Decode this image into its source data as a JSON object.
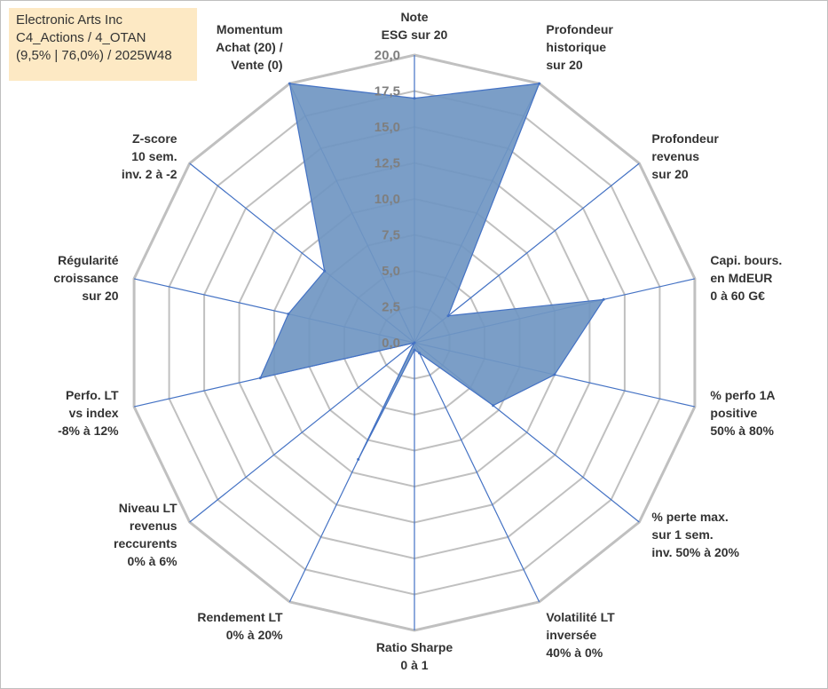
{
  "info": {
    "line1": "Electronic Arts Inc",
    "line2": "C4_Actions / 4_OTAN",
    "line3": "(9,5% | 76,0%) / 2025W48"
  },
  "chart_data": {
    "type": "radar",
    "rmin": 0,
    "rmax": 20,
    "ticks": [
      "0,0",
      "2,5",
      "5,0",
      "7,5",
      "10,0",
      "12,5",
      "15,0",
      "17,5",
      "20,0"
    ],
    "grid": true,
    "colors": {
      "fill": "#7096c2",
      "stroke": "#4472c4",
      "grid": "#c0c0c0"
    },
    "axes": [
      {
        "label": [
          "Note",
          "ESG sur 20"
        ],
        "value": 17
      },
      {
        "label": [
          "Profondeur",
          "historique",
          "sur 20"
        ],
        "value": 20
      },
      {
        "label": [
          "Profondeur",
          "revenus",
          "sur 20"
        ],
        "value": 3
      },
      {
        "label": [
          "Capi. bours.",
          "en MdEUR",
          "0 à 60 G€"
        ],
        "value": 13.5
      },
      {
        "label": [
          "% perfo 1A",
          "positive",
          "50% à 80%"
        ],
        "value": 10
      },
      {
        "label": [
          "% perte max.",
          "sur 1 sem.",
          "inv. 50% à 20%"
        ],
        "value": 7
      },
      {
        "label": [
          "Volatilité LT",
          "inversée",
          "40% à 0%"
        ],
        "value": 0.8
      },
      {
        "label": [
          "Ratio Sharpe",
          "0 à 1"
        ],
        "value": 0.5
      },
      {
        "label": [
          "Rendement LT",
          "0% à 20%"
        ],
        "value": 9
      },
      {
        "label": [
          "Niveau LT",
          "revenus",
          "reccurents",
          "0% à 6%"
        ],
        "value": 0
      },
      {
        "label": [
          "Perfo. LT",
          "vs index",
          "-8% à 12%"
        ],
        "value": 11
      },
      {
        "label": [
          "Régularité",
          "croissance",
          "sur 20"
        ],
        "value": 9
      },
      {
        "label": [
          "Z-score",
          "10 sem.",
          "inv. 2 à -2"
        ],
        "value": 8
      },
      {
        "label": [
          "Momentum",
          "Achat (20) /",
          "Vente (0)"
        ],
        "value": 20
      }
    ]
  }
}
